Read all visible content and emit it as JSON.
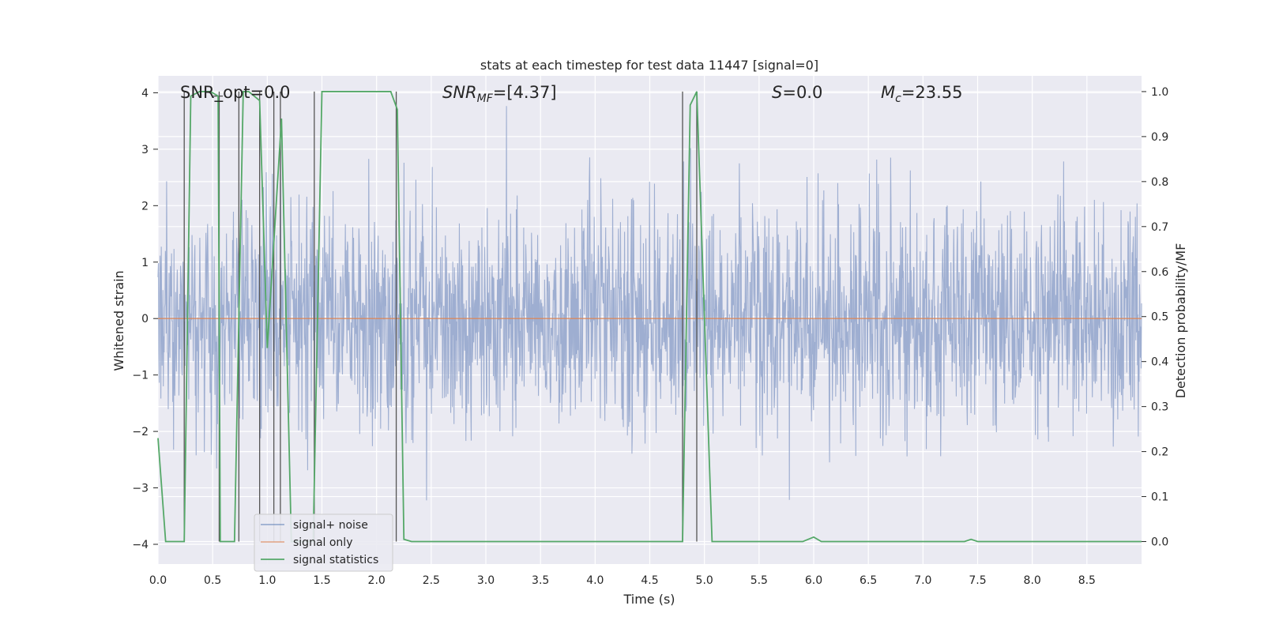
{
  "chart_data": {
    "type": "line",
    "title": "stats at each timestep for test data 11447 [signal=0]",
    "xlabel": "Time (s)",
    "ylabel_left": "Whitened strain",
    "ylabel_right": "Detection probability/MF",
    "xlim": [
      0,
      9.0
    ],
    "ylim_left": [
      -4.35,
      4.3
    ],
    "ylim_right": [
      -0.05,
      1.035
    ],
    "x_ticks": [
      0.0,
      0.5,
      1.0,
      1.5,
      2.0,
      2.5,
      3.0,
      3.5,
      4.0,
      4.5,
      5.0,
      5.5,
      6.0,
      6.5,
      7.0,
      7.5,
      8.0,
      8.5
    ],
    "x_tick_labels": [
      "0.0",
      "0.5",
      "1.0",
      "1.5",
      "2.0",
      "2.5",
      "3.0",
      "3.5",
      "4.0",
      "4.5",
      "5.0",
      "5.5",
      "6.0",
      "6.5",
      "7.0",
      "7.5",
      "8.0",
      "8.5"
    ],
    "y_left_ticks": [
      -4,
      -3,
      -2,
      -1,
      0,
      1,
      2,
      3,
      4
    ],
    "y_left_tick_labels": [
      "−4",
      "−3",
      "−2",
      "−1",
      "0",
      "1",
      "2",
      "3",
      "4"
    ],
    "y_right_ticks": [
      0.0,
      0.1,
      0.2,
      0.3,
      0.4,
      0.5,
      0.6,
      0.7,
      0.8,
      0.9,
      1.0
    ],
    "y_right_tick_labels": [
      "0.0",
      "0.1",
      "0.2",
      "0.3",
      "0.4",
      "0.5",
      "0.6",
      "0.7",
      "0.8",
      "0.9",
      "1.0"
    ],
    "annotations": {
      "snr_opt": "SNR_opt=0.0",
      "snr_mf_main": "SNR",
      "snr_mf_sub": "MF",
      "snr_mf_value": "=[4.37]",
      "s_main": "S",
      "s_value": "=0.0",
      "mc_main": "M",
      "mc_sub": "c",
      "mc_value": "=23.55"
    },
    "legend": [
      {
        "label": "signal+ noise",
        "color": "#4c72b0"
      },
      {
        "label": "signal only",
        "color": "#dd8452"
      },
      {
        "label": "signal statistics",
        "color": "#55a868"
      }
    ],
    "noise_series": {
      "name": "signal+ noise",
      "color": "#9aabcf",
      "sigma": 1.0,
      "samples": 2400,
      "seed": 11447
    },
    "signal_only": {
      "name": "signal only",
      "value": 0.0,
      "color": "#dd8452"
    },
    "signal_statistics": {
      "name": "signal statistics",
      "color": "#55a868",
      "x": [
        0.0,
        0.07,
        0.1,
        0.24,
        0.3,
        0.38,
        0.48,
        0.55,
        0.57,
        0.63,
        0.7,
        0.78,
        0.83,
        0.93,
        1.0,
        1.13,
        1.22,
        1.42,
        1.5,
        1.8,
        2.13,
        2.19,
        2.25,
        2.32,
        2.5,
        4.0,
        4.8,
        4.87,
        4.93,
        5.07,
        5.4,
        5.9,
        6.0,
        6.07,
        6.5,
        7.38,
        7.44,
        7.5,
        9.0
      ],
      "y": [
        0.23,
        0.0,
        0.0,
        0.0,
        0.99,
        1.0,
        1.0,
        0.99,
        0.0,
        0.0,
        0.0,
        1.0,
        1.0,
        0.98,
        0.43,
        0.94,
        0.0,
        0.0,
        1.0,
        1.0,
        1.0,
        0.96,
        0.005,
        0.0,
        0.0,
        0.0,
        0.0,
        0.97,
        1.0,
        0.0,
        0.0,
        0.0,
        0.01,
        0.0,
        0.0,
        0.0,
        0.005,
        0.0,
        0.0
      ]
    },
    "vertical_markers": {
      "color": "#555555",
      "lines": [
        {
          "x": 0.24,
          "y0": 0.0,
          "y1": 1.0
        },
        {
          "x": 0.56,
          "y0": 0.0,
          "y1": 1.0
        },
        {
          "x": 0.74,
          "y0": 0.0,
          "y1": 1.0
        },
        {
          "x": 0.93,
          "y0": 0.0,
          "y1": 1.0
        },
        {
          "x": 1.06,
          "y0": 0.0,
          "y1": 1.0
        },
        {
          "x": 1.12,
          "y0": 0.0,
          "y1": 1.0
        },
        {
          "x": 1.43,
          "y0": 0.0,
          "y1": 1.0
        },
        {
          "x": 2.18,
          "y0": 0.0,
          "y1": 1.0
        },
        {
          "x": 4.8,
          "y0": 0.0,
          "y1": 1.0
        },
        {
          "x": 4.93,
          "y0": 0.0,
          "y1": 1.0
        }
      ],
      "short_marks": [
        {
          "x": 0.55,
          "y": 0.99
        }
      ]
    },
    "grid": true,
    "legend_position": "lower-left"
  }
}
